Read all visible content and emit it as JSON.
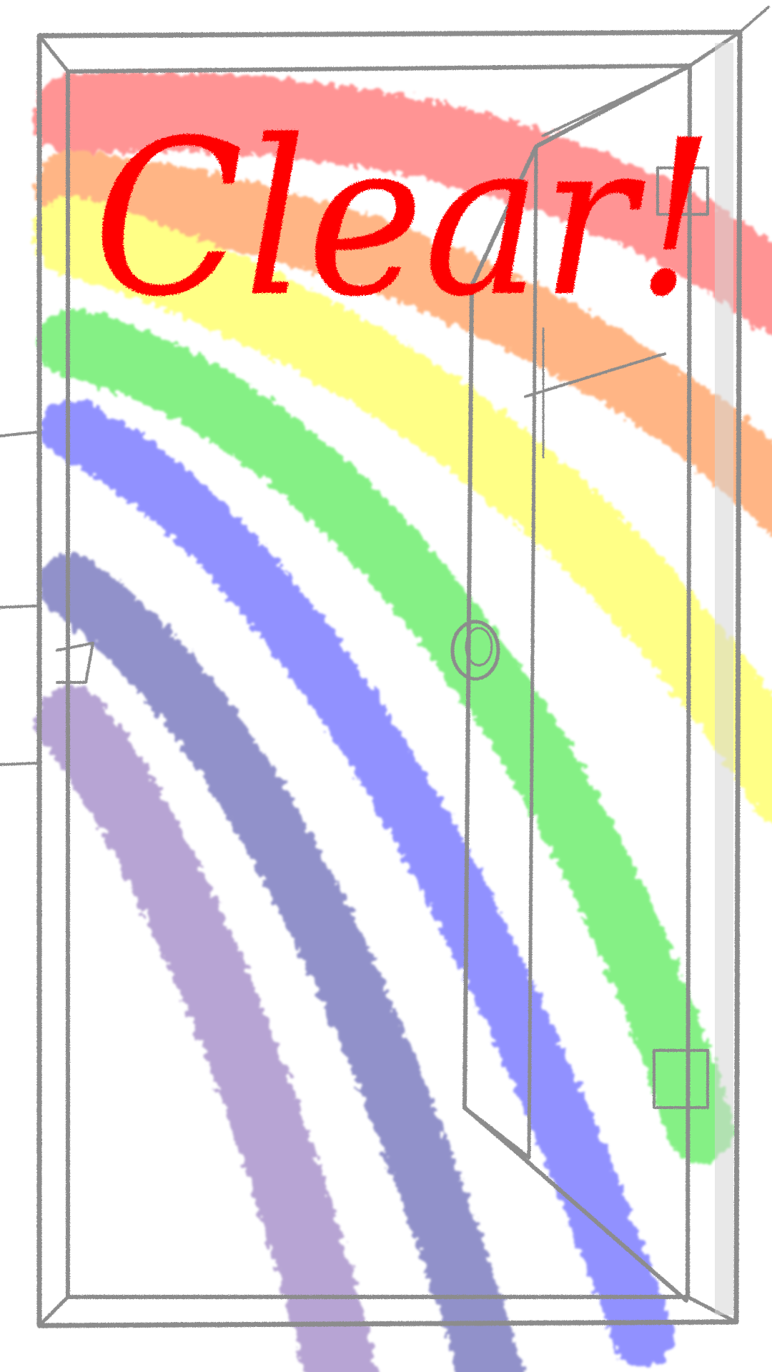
{
  "clear_banner": {
    "text": "Clear!"
  },
  "colors": {
    "background": "#ffffff",
    "banner_text": "#ff0000",
    "pencil_stroke": "#8c8c8c",
    "pencil_shadow": "#d6d6d6",
    "rainbow": [
      "#ff8f8f",
      "#ffb27f",
      "#ffff80",
      "#7ff07f",
      "#8c8cff",
      "#8c8cc8",
      "#b4a0d2"
    ]
  },
  "icons": {
    "doorknob": "doorknob-icon",
    "hinge": "hinge-icon"
  }
}
